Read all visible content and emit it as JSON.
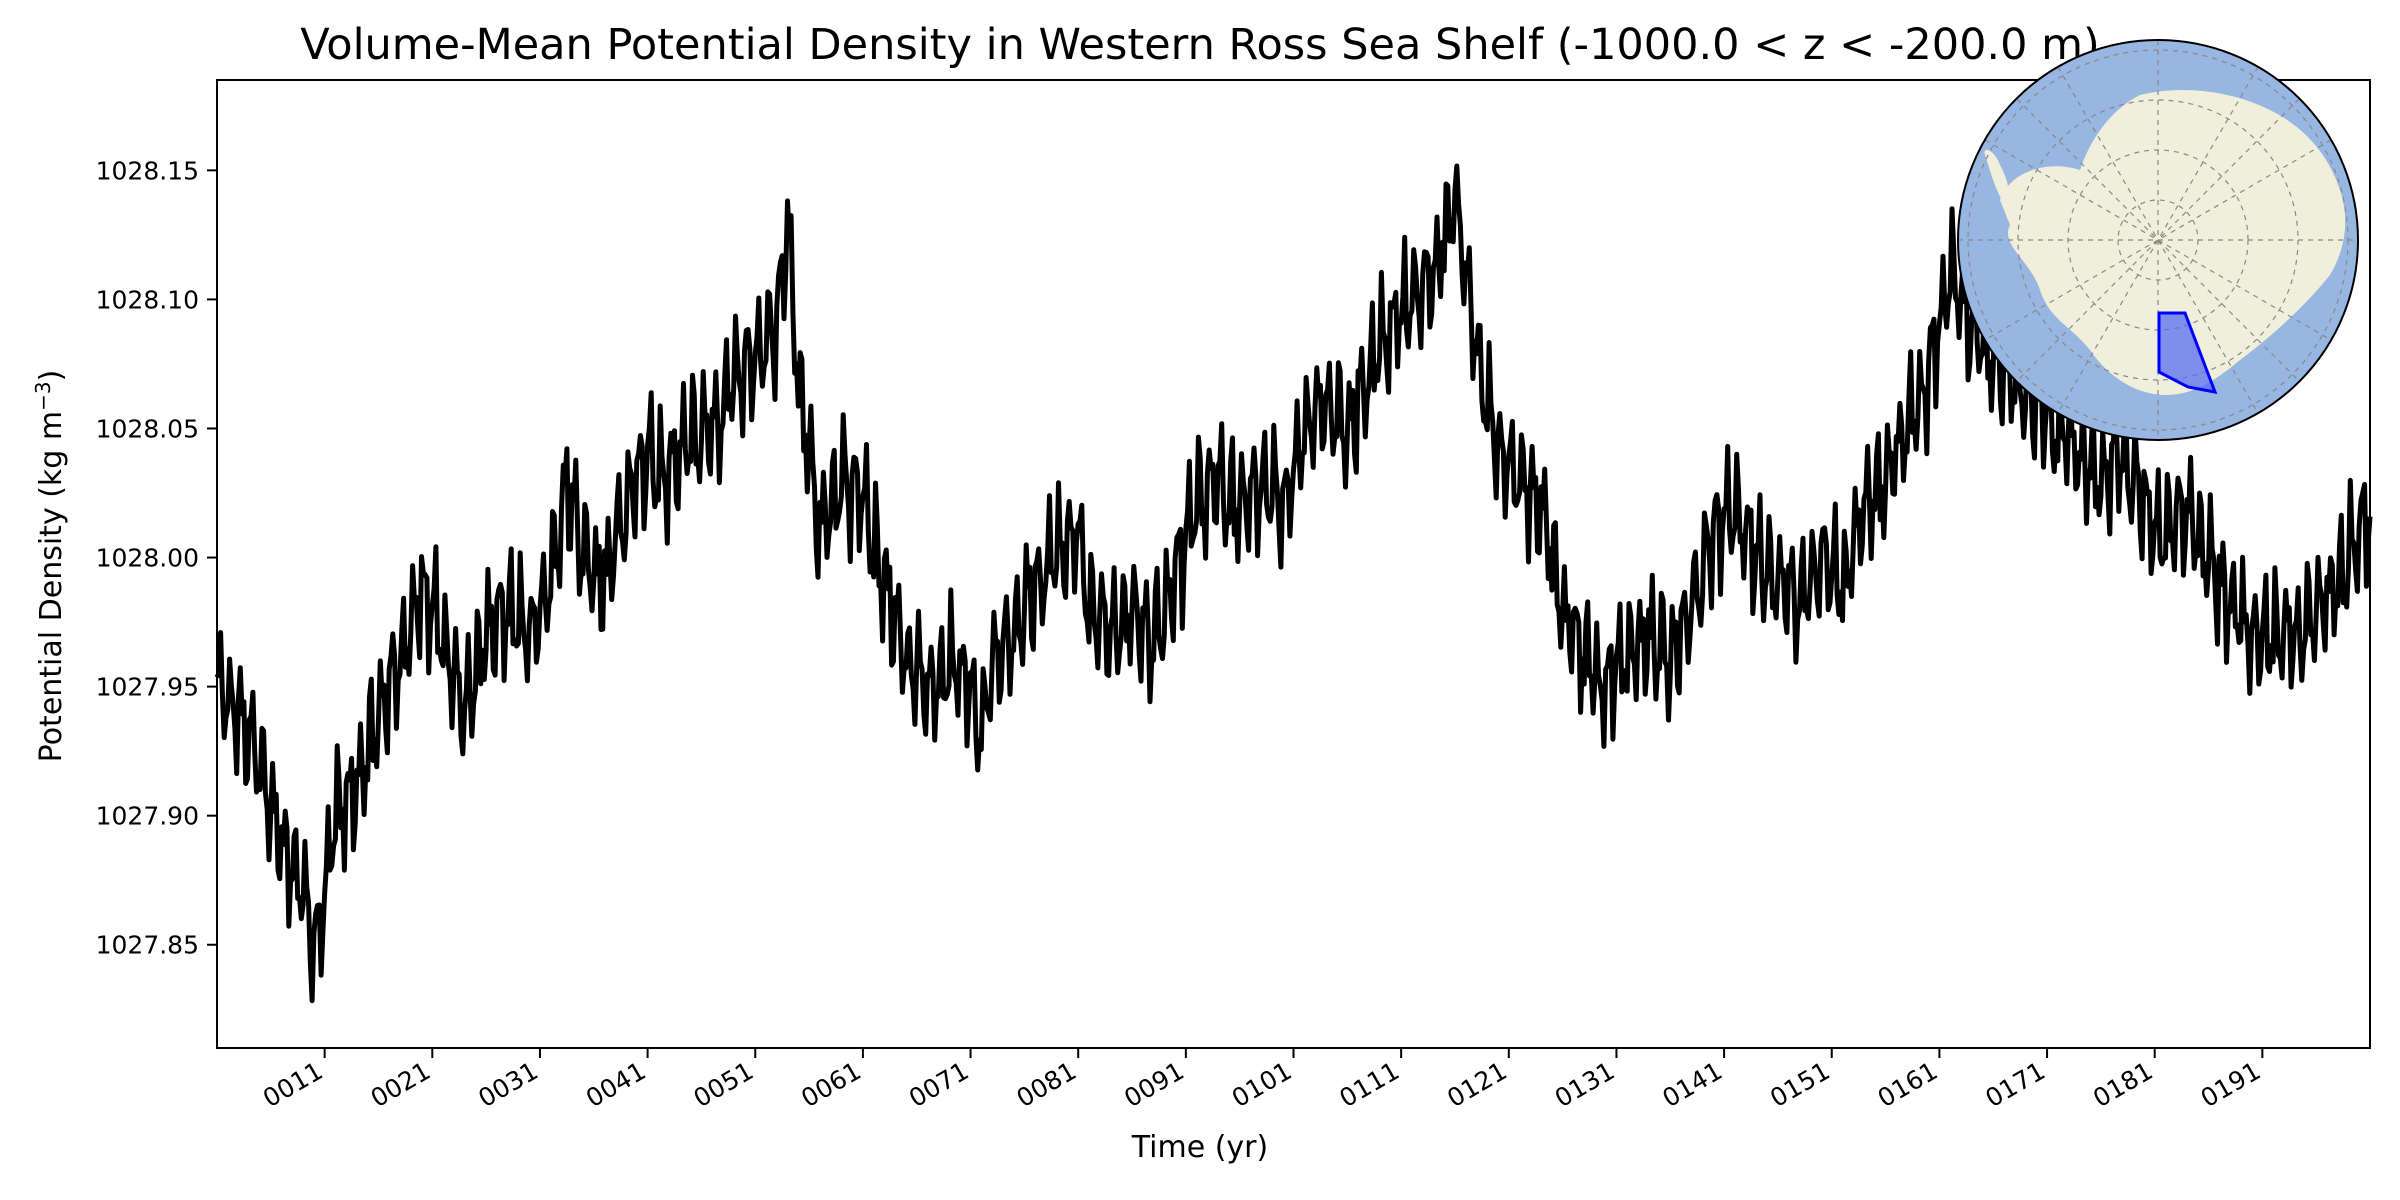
{
  "chart_data": {
    "type": "line",
    "title": "Volume-Mean Potential Density in Western Ross Sea Shelf (-1000.0 < z < -200.0 m)",
    "xlabel": "Time (yr)",
    "ylabel_main": "Potential Density (kg m",
    "ylabel_exp": "−3",
    "ylabel_close": ")",
    "xlim": [
      1,
      201
    ],
    "ylim": [
      1027.81,
      1028.185
    ],
    "yticks": [
      1027.85,
      1027.9,
      1027.95,
      1028.0,
      1028.05,
      1028.1,
      1028.15
    ],
    "ytick_labels": [
      "1027.85",
      "1027.90",
      "1027.95",
      "1028.00",
      "1028.05",
      "1028.10",
      "1028.15"
    ],
    "xticks": [
      11,
      21,
      31,
      41,
      51,
      61,
      71,
      81,
      91,
      101,
      111,
      121,
      131,
      141,
      151,
      161,
      171,
      181,
      191
    ],
    "xtick_labels": [
      "0011",
      "0021",
      "0031",
      "0041",
      "0051",
      "0061",
      "0071",
      "0081",
      "0091",
      "0101",
      "0111",
      "0121",
      "0131",
      "0141",
      "0151",
      "0161",
      "0171",
      "0181",
      "0191"
    ],
    "line_color": "#000000",
    "series": [
      {
        "anchors_x": [
          1,
          3,
          5,
          7,
          9,
          10,
          11,
          12,
          14,
          16,
          18,
          20,
          22,
          24,
          26,
          28,
          30,
          32,
          33.5,
          35,
          37,
          39,
          41,
          43,
          45,
          47,
          49,
          51,
          53,
          54,
          55,
          57,
          59,
          61,
          63,
          65,
          67,
          69,
          71,
          72,
          73,
          75,
          77,
          79,
          81,
          82,
          84,
          86,
          88,
          90,
          92,
          94,
          96,
          98,
          100,
          102,
          104,
          106,
          108,
          110,
          112,
          114,
          116,
          118,
          120,
          122,
          124,
          126,
          128,
          130,
          132,
          134,
          136,
          138,
          140,
          142,
          144,
          146,
          148,
          150,
          152,
          154,
          156,
          158,
          160,
          162,
          164,
          166,
          168,
          170,
          172,
          174,
          176,
          178,
          180,
          182,
          184,
          186,
          188,
          190,
          192,
          194,
          196,
          198,
          201
        ],
        "anchors_y": [
          1027.95,
          1027.94,
          1027.92,
          1027.89,
          1027.87,
          1027.85,
          1027.87,
          1027.9,
          1027.91,
          1027.94,
          1027.96,
          1027.99,
          1027.97,
          1027.94,
          1027.97,
          1027.98,
          1027.97,
          1027.99,
          1028.03,
          1028.0,
          1027.99,
          1028.02,
          1028.04,
          1028.03,
          1028.05,
          1028.05,
          1028.07,
          1028.08,
          1028.09,
          1028.13,
          1028.07,
          1028.01,
          1028.03,
          1028.02,
          1027.99,
          1027.96,
          1027.95,
          1027.96,
          1027.95,
          1027.93,
          1027.96,
          1027.97,
          1027.99,
          1028.0,
          1028.01,
          1027.98,
          1027.97,
          1027.98,
          1027.97,
          1027.99,
          1028.02,
          1028.03,
          1028.02,
          1028.03,
          1028.02,
          1028.05,
          1028.06,
          1028.05,
          1028.07,
          1028.09,
          1028.1,
          1028.11,
          1028.14,
          1028.08,
          1028.04,
          1028.03,
          1028.02,
          1027.98,
          1027.96,
          1027.95,
          1027.96,
          1027.97,
          1027.96,
          1027.98,
          1028.01,
          1028.02,
          1028.0,
          1027.99,
          1027.98,
          1028.0,
          1027.99,
          1028.02,
          1028.03,
          1028.05,
          1028.07,
          1028.11,
          1028.09,
          1028.08,
          1028.07,
          1028.06,
          1028.05,
          1028.04,
          1028.03,
          1028.04,
          1028.02,
          1028.01,
          1028.02,
          1028.0,
          1027.98,
          1027.97,
          1027.97,
          1027.97,
          1027.98,
          1027.99,
          1028.02
        ]
      }
    ]
  },
  "inset_map": {
    "ocean_color": "#97b6e1",
    "land_color": "#efefdb",
    "region_fill": "#5a6cf0",
    "region_edge": "#0000ff"
  }
}
